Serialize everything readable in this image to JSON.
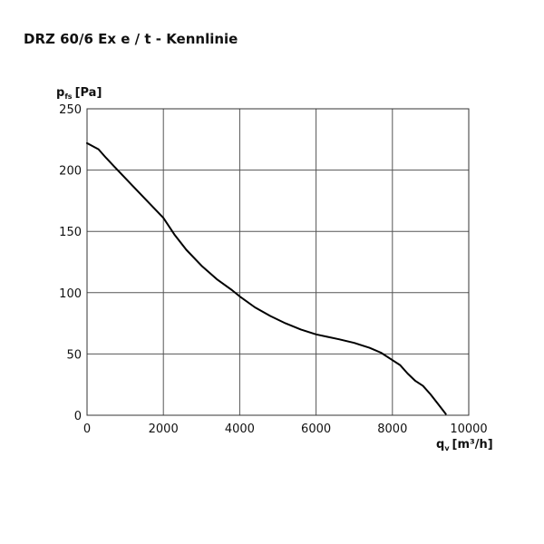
{
  "page": {
    "title": "DRZ 60/6 Ex e / t - Kennlinie"
  },
  "chart_data": {
    "type": "line",
    "title": "DRZ 60/6 Ex e / t - Kennlinie",
    "ylabel": {
      "main": "p",
      "sub": "fs",
      "unit": "[Pa]"
    },
    "xlabel": {
      "main": "q",
      "sub": "v",
      "unit": "[m³/h]"
    },
    "xlim": [
      0,
      10000
    ],
    "ylim": [
      0,
      250
    ],
    "xticks": [
      0,
      2000,
      4000,
      6000,
      8000,
      10000
    ],
    "yticks": [
      0,
      50,
      100,
      150,
      200,
      250
    ],
    "grid": true,
    "colors": {
      "line": "#000000",
      "grid": "#555555",
      "frame": "#333333"
    },
    "series": [
      {
        "x": [
          0,
          300,
          500,
          800,
          1200,
          1600,
          2000,
          2300,
          2600,
          3000,
          3400,
          3800,
          4000,
          4400,
          4800,
          5200,
          5600,
          6000,
          6300,
          6600,
          7000,
          7400,
          7700,
          8000,
          8200,
          8400,
          8600,
          8800,
          9000,
          9200,
          9400
        ],
        "y": [
          222,
          217,
          210,
          200,
          187,
          174,
          161,
          147,
          135,
          122,
          111,
          102,
          97,
          88,
          81,
          75,
          70,
          66,
          64,
          62,
          59,
          55,
          51,
          45,
          41,
          34,
          28,
          24,
          17,
          9,
          1
        ]
      }
    ]
  }
}
